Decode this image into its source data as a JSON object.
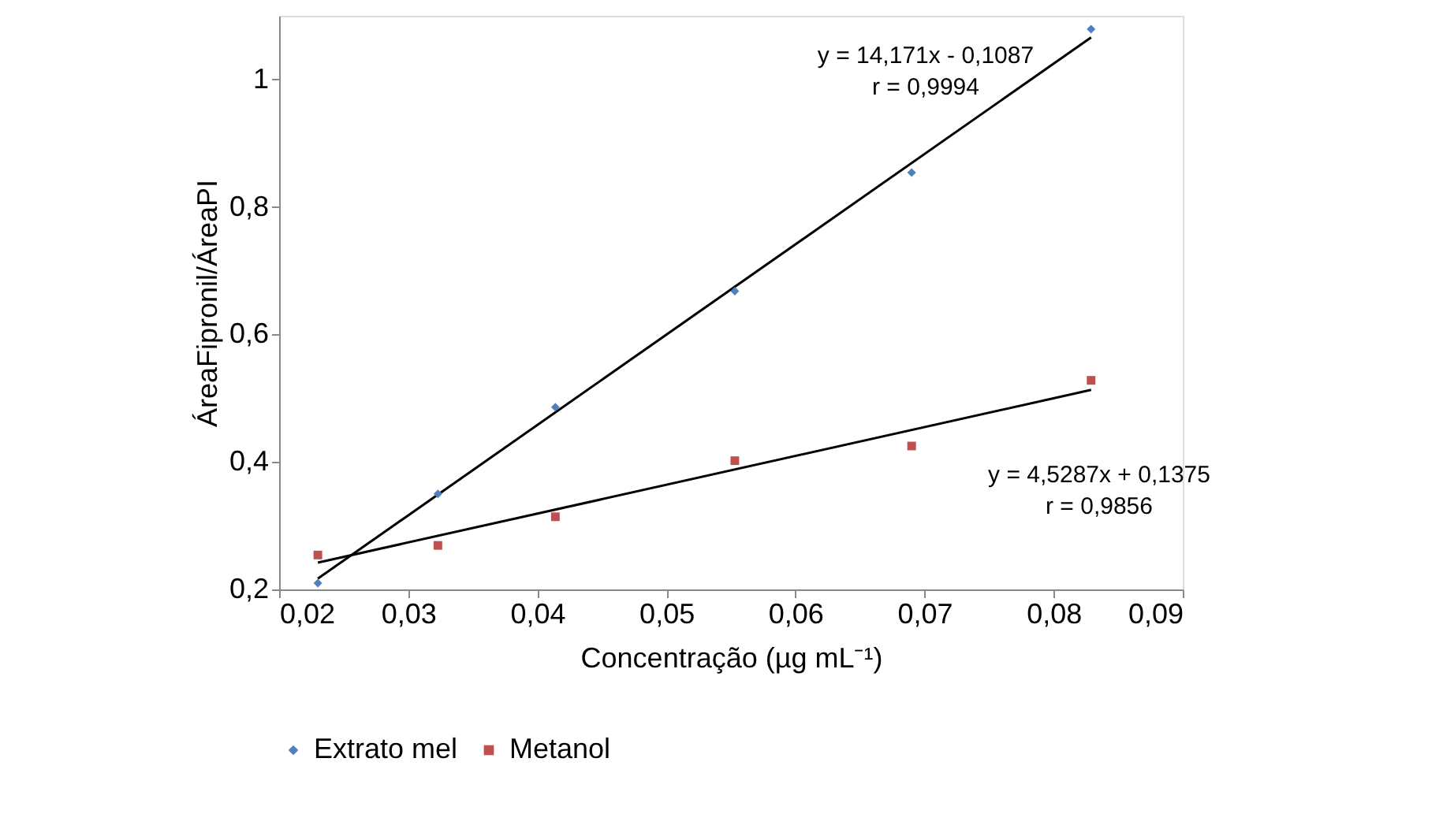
{
  "chart_data": {
    "type": "scatter",
    "xlabel": "Concentração (µg mL⁻¹)",
    "ylabel": "ÁreaFipronil/ÁreaPI",
    "xlim": [
      0.02,
      0.09
    ],
    "xticks": [
      {
        "value": 0.02,
        "label": "0,02"
      },
      {
        "value": 0.03,
        "label": "0,03"
      },
      {
        "value": 0.04,
        "label": "0,04"
      },
      {
        "value": 0.05,
        "label": "0,05"
      },
      {
        "value": 0.06,
        "label": "0,06"
      },
      {
        "value": 0.07,
        "label": "0,07"
      },
      {
        "value": 0.08,
        "label": "0,08"
      },
      {
        "value": 0.09,
        "label": "0,09"
      }
    ],
    "ylim": [
      0.2,
      1.1
    ],
    "yticks": [
      {
        "value": 0.2,
        "label": "0,2"
      },
      {
        "value": 0.4,
        "label": "0,4"
      },
      {
        "value": 0.6,
        "label": "0,6"
      },
      {
        "value": 0.8,
        "label": "0,8"
      },
      {
        "value": 1,
        "label": "1"
      }
    ],
    "grid": false,
    "legend": "bottom",
    "series": [
      {
        "name": "Extrato mel",
        "color": "#4f81bd",
        "marker": "diamond",
        "x": [
          0.023,
          0.0323,
          0.0414,
          0.0553,
          0.069,
          0.0829
        ],
        "values": [
          0.21,
          0.35,
          0.486,
          0.668,
          0.854,
          1.079
        ]
      },
      {
        "name": "Metanol",
        "color": "#c0504d",
        "marker": "square",
        "x": [
          0.023,
          0.0323,
          0.0414,
          0.0553,
          0.069,
          0.0829
        ],
        "values": [
          0.254,
          0.269,
          0.314,
          0.402,
          0.425,
          0.528
        ]
      },
      {
        "type": "line",
        "color": "#000000",
        "x": [
          0.023,
          0.0829
        ],
        "values": [
          0.217,
          1.066
        ]
      },
      {
        "type": "line",
        "color": "#000000",
        "x": [
          0.023,
          0.0829
        ],
        "values": [
          0.242,
          0.513
        ]
      }
    ],
    "annotations": [
      "y = 14,171x - 0,1087\nr = 0,9994",
      "y = 4,5287x + 0,1375\nr = 0,9856"
    ]
  }
}
